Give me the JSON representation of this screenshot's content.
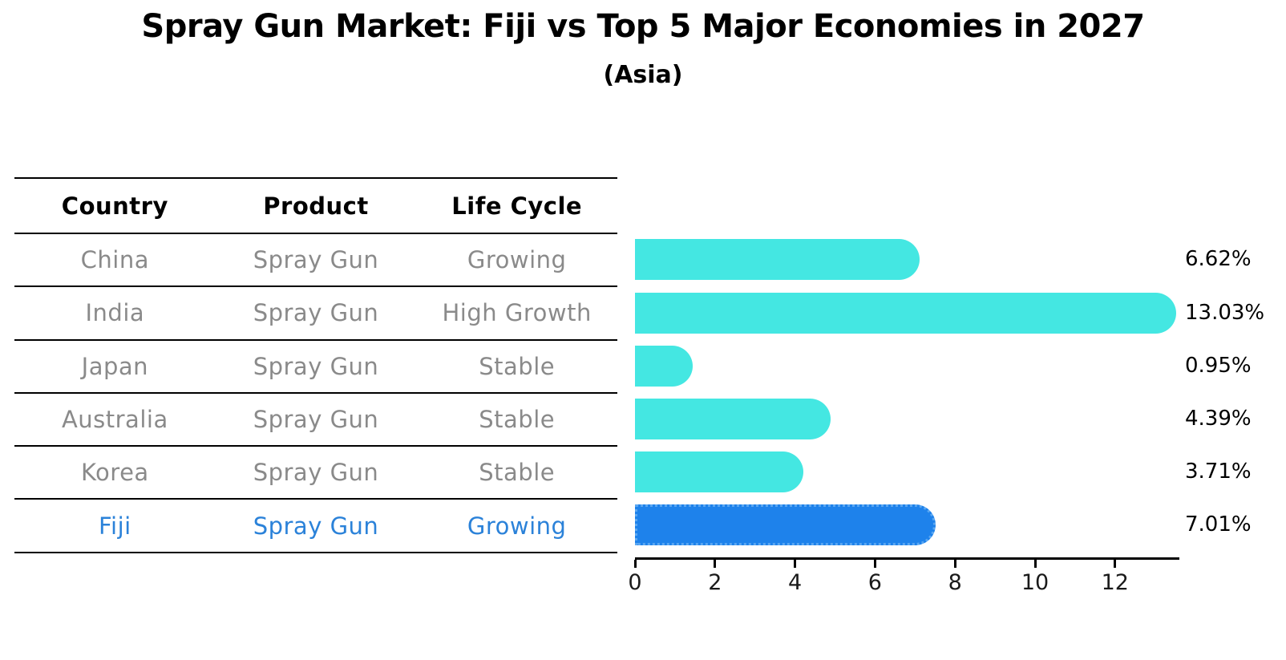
{
  "header": {
    "title": "Spray Gun Market: Fiji vs Top 5 Major Economies in 2027",
    "subtitle": "(Asia)"
  },
  "table": {
    "columns": [
      "Country",
      "Product",
      "Life Cycle"
    ],
    "rows": [
      {
        "country": "China",
        "product": "Spray Gun",
        "life_cycle": "Growing",
        "highlight": false
      },
      {
        "country": "India",
        "product": "Spray Gun",
        "life_cycle": "High Growth",
        "highlight": false
      },
      {
        "country": "Japan",
        "product": "Spray Gun",
        "life_cycle": "Stable",
        "highlight": false
      },
      {
        "country": "Australia",
        "product": "Spray Gun",
        "life_cycle": "Stable",
        "highlight": false
      },
      {
        "country": "Korea",
        "product": "Spray Gun",
        "life_cycle": "Stable",
        "highlight": false
      },
      {
        "country": "Fiji",
        "product": "Spray Gun",
        "life_cycle": "Growing",
        "highlight": true
      }
    ]
  },
  "chart_data": {
    "type": "bar",
    "orientation": "horizontal",
    "title": "Spray Gun Market: Fiji vs Top 5 Major Economies in 2027",
    "subtitle": "(Asia)",
    "categories": [
      "China",
      "India",
      "Japan",
      "Australia",
      "Korea",
      "Fiji"
    ],
    "values": [
      6.62,
      13.03,
      0.95,
      4.39,
      3.71,
      7.01
    ],
    "value_labels": [
      "6.62%",
      "13.03%",
      "0.95%",
      "4.39%",
      "3.71%",
      "7.01%"
    ],
    "highlight_index": 5,
    "xlabel": "",
    "ylabel": "",
    "xlim": [
      0,
      13.6
    ],
    "xticks": [
      0,
      2,
      4,
      6,
      8,
      10,
      12
    ],
    "xtick_labels": [
      "0",
      "2",
      "4",
      "6",
      "8",
      "10",
      "12"
    ],
    "grid": false,
    "legend": "none"
  },
  "colors": {
    "bar_normal": "#44e7e2",
    "bar_highlight": "#1e82eb",
    "bar_highlight_edge": "#5aa7f2",
    "fiji_text": "#2b82d9",
    "table_text": "#8a8a8a",
    "heading_text": "#000000",
    "axis": "#000000",
    "background": "#ffffff"
  }
}
